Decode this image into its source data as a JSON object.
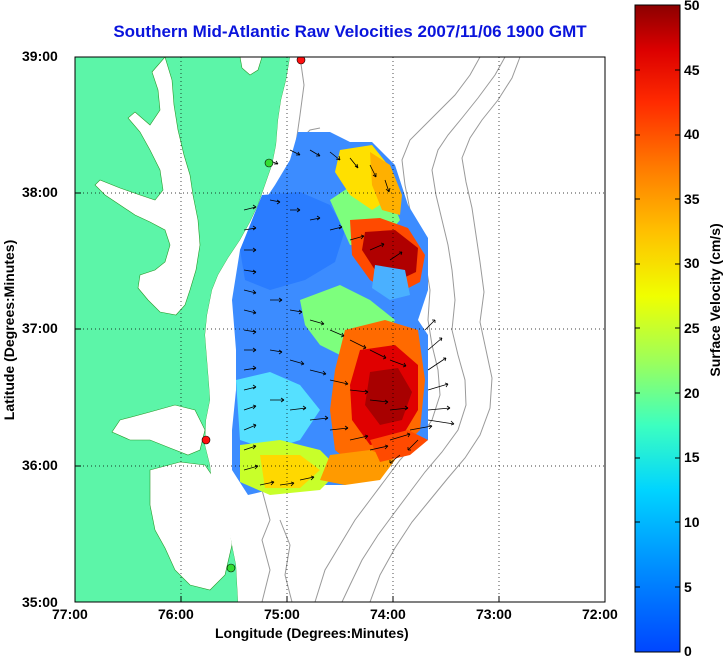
{
  "title": "Southern Mid-Atlantic Raw Velocities 2007/11/06 1900 GMT",
  "map": {
    "xlabel": "Longitude (Degrees:Minutes)",
    "ylabel": "Latitude (Degrees:Minutes)",
    "x_ticks": [
      "77:00",
      "76:00",
      "75:00",
      "74:00",
      "73:00",
      "72:00"
    ],
    "y_ticks": [
      "39:00",
      "38:00",
      "37:00",
      "36:00",
      "35:00"
    ],
    "lon_range": [
      -77,
      -72
    ],
    "lat_range": [
      35,
      39
    ],
    "grid": "dotted",
    "colors": {
      "land": "#5cf5a8",
      "water": "#ffffff",
      "bathymetry": "#9a9a9a",
      "arrows": "#000000",
      "site_red": "#ff1010",
      "site_green": "#33dd33"
    }
  },
  "colorbar": {
    "label": "Surface Velocity (cm/s)",
    "ticks": [
      "0",
      "5",
      "10",
      "15",
      "20",
      "25",
      "30",
      "35",
      "40",
      "45",
      "50"
    ],
    "range": [
      0,
      50
    ],
    "colormap": "jet"
  },
  "sites": [
    {
      "type": "red",
      "lon": -74.85,
      "lat": 38.98
    },
    {
      "type": "green",
      "lon": -75.15,
      "lat": 38.22
    },
    {
      "type": "red",
      "lon": -75.72,
      "lat": 36.17
    },
    {
      "type": "green",
      "lon": -75.5,
      "lat": 35.25
    }
  ]
}
